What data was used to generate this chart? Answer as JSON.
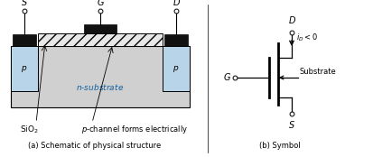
{
  "bg_color": "#ffffff",
  "fig_width": 4.14,
  "fig_height": 1.74,
  "dpi": 100,
  "sub_color": "#d0d0d0",
  "p_color": "#b8d4e8",
  "metal_color": "#111111",
  "oxide_color": "#e8e8e8",
  "n_sub_text_color": "#1060a0",
  "label_S": "S",
  "label_G": "G",
  "label_D": "D",
  "label_sio2": "SiO$_2$",
  "label_pchannel": "$p$-channel forms electrically",
  "label_caption_left": "(a) Schematic of physical structure",
  "label_caption_right": "(b) Symbol",
  "label_substrate": "Substrate",
  "label_n_sub": "$n$-substrate",
  "label_p": "$p$"
}
